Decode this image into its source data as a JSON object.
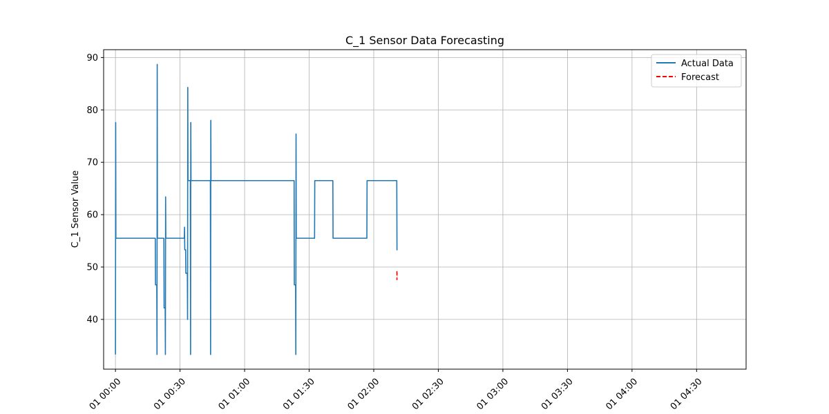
{
  "chart_data": {
    "type": "line",
    "title": "C_1 Sensor Data Forecasting",
    "xlabel": "",
    "ylabel": "C_1 Sensor Value",
    "ylim": [
      30.5,
      91.5
    ],
    "yticks": [
      40,
      50,
      60,
      70,
      80,
      90
    ],
    "xlim_minutes": [
      -5.5,
      293
    ],
    "xticks": [
      {
        "minutes": 0,
        "label": "01 00:00"
      },
      {
        "minutes": 30,
        "label": "01 00:30"
      },
      {
        "minutes": 60,
        "label": "01 01:00"
      },
      {
        "minutes": 90,
        "label": "01 01:30"
      },
      {
        "minutes": 120,
        "label": "01 02:00"
      },
      {
        "minutes": 150,
        "label": "01 02:30"
      },
      {
        "minutes": 180,
        "label": "01 03:00"
      },
      {
        "minutes": 210,
        "label": "01 03:30"
      },
      {
        "minutes": 240,
        "label": "01 04:00"
      },
      {
        "minutes": 270,
        "label": "01 04:30"
      }
    ],
    "grid": true,
    "legend_position": "top-right",
    "series": [
      {
        "name": "Actual Data",
        "color": "#1f77b4",
        "style": "solid",
        "points": [
          [
            0,
            33.3
          ],
          [
            0.1,
            77.6
          ],
          [
            0.2,
            55.5
          ],
          [
            0.4,
            55.5
          ],
          [
            18.5,
            55.5
          ],
          [
            18.6,
            46.6
          ],
          [
            19.2,
            46.6
          ],
          [
            19.3,
            33.3
          ],
          [
            19.4,
            88.7
          ],
          [
            19.5,
            55.5
          ],
          [
            22.5,
            55.5
          ],
          [
            22.6,
            42.2
          ],
          [
            23.1,
            42.2
          ],
          [
            23.2,
            33.3
          ],
          [
            23.3,
            63.4
          ],
          [
            23.4,
            55.5
          ],
          [
            32.0,
            55.5
          ],
          [
            32.1,
            57.6
          ],
          [
            32.2,
            53.3
          ],
          [
            32.6,
            53.3
          ],
          [
            32.7,
            48.8
          ],
          [
            33.4,
            48.8
          ],
          [
            33.5,
            40.0
          ],
          [
            33.6,
            84.3
          ],
          [
            33.7,
            66.5
          ],
          [
            34.8,
            66.5
          ],
          [
            34.9,
            33.3
          ],
          [
            35.0,
            77.6
          ],
          [
            35.1,
            66.5
          ],
          [
            44.1,
            66.5
          ],
          [
            44.2,
            33.3
          ],
          [
            44.3,
            78.0
          ],
          [
            44.4,
            66.5
          ],
          [
            83.0,
            66.5
          ],
          [
            83.1,
            46.6
          ],
          [
            83.7,
            46.6
          ],
          [
            83.8,
            33.3
          ],
          [
            83.9,
            75.4
          ],
          [
            84.0,
            55.5
          ],
          [
            92.5,
            55.5
          ],
          [
            92.6,
            66.5
          ],
          [
            101.0,
            66.5
          ],
          [
            101.1,
            55.5
          ],
          [
            116.8,
            55.5
          ],
          [
            116.9,
            66.5
          ],
          [
            130.7,
            66.5
          ],
          [
            130.8,
            53.2
          ]
        ],
        "time_offset_note": ""
      },
      {
        "name": "Forecast",
        "color": "#ff0000",
        "style": "dashed",
        "points": [
          [
            130.75,
            49.2
          ],
          [
            130.78,
            47.6
          ],
          [
            130.82,
            48.9
          ],
          [
            130.86,
            48.2
          ]
        ]
      }
    ]
  }
}
